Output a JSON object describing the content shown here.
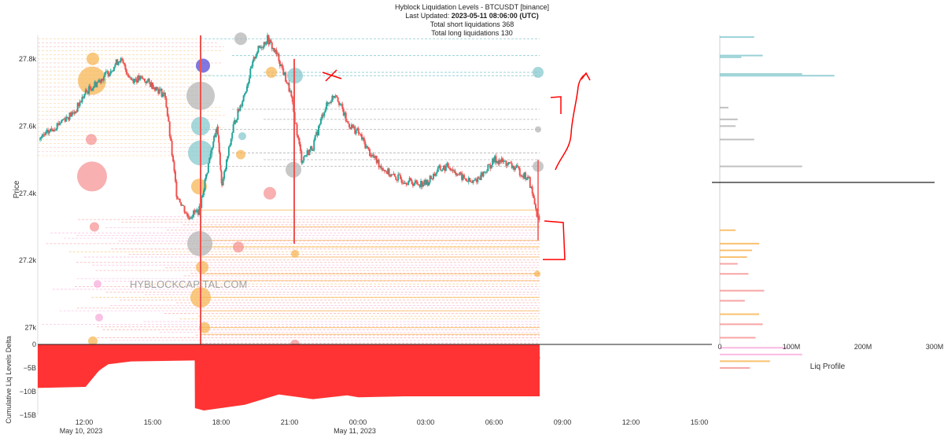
{
  "header": {
    "title": "Hyblock Liquidation Levels - BTCUSDT [binance]",
    "updated_label": "Last Updated:",
    "updated_value": "2023-05-11 08:06:00 (UTC)",
    "short_liq": "Total short liquidations 368",
    "long_liq": "Total long liquidations 130"
  },
  "watermark": "HYBLOCKCAPITAL.COM",
  "colors": {
    "candle_up": "#26a69a",
    "candle_down": "#ef5350",
    "delta_fill": "#ff3333",
    "short_teal": "#7fc6cc",
    "short_gray": "#b0b0b0",
    "long_orange": "#f7b24b",
    "long_salmon": "#f58f8f",
    "long_pink": "#f7a8d8",
    "annotation_red": "#ff0000"
  },
  "chart_data": [
    {
      "type": "scatter",
      "title": "Hyblock Liquidation Levels - BTCUSDT [binance]",
      "ylabel": "Price",
      "x_ticks": [
        "12:00",
        "15:00",
        "18:00",
        "21:00",
        "00:00",
        "03:00",
        "06:00",
        "09:00",
        "12:00",
        "15:00"
      ],
      "x_date_labels": [
        "May 10, 2023",
        "May 11, 2023"
      ],
      "y_ticks": [
        "27.8k",
        "27.6k",
        "27.4k",
        "27.2k",
        "27k"
      ],
      "ylim": [
        26950,
        27870
      ],
      "price_series": {
        "x_hours": [
          0,
          0.5,
          1,
          1.5,
          2,
          2.5,
          3,
          3.5,
          4,
          4.5,
          5,
          5.5,
          6,
          6.5,
          7,
          7.5,
          7.8,
          8,
          8.5,
          9,
          9.5,
          10,
          10.5,
          11,
          11.5,
          12,
          12.5,
          13,
          13.5,
          14,
          14.5,
          15,
          15.5,
          16,
          16.5,
          17,
          17.5,
          18,
          18.5,
          19,
          19.5,
          20,
          20.5,
          21,
          21.5,
          22
        ],
        "close": [
          27560,
          27590,
          27620,
          27640,
          27700,
          27730,
          27760,
          27800,
          27740,
          27740,
          27720,
          27690,
          27400,
          27330,
          27350,
          27520,
          27600,
          27420,
          27600,
          27700,
          27820,
          27860,
          27800,
          27700,
          27500,
          27540,
          27650,
          27700,
          27610,
          27580,
          27520,
          27480,
          27450,
          27440,
          27430,
          27430,
          27470,
          27480,
          27450,
          27430,
          27460,
          27500,
          27490,
          27470,
          27440,
          27300
        ]
      },
      "short_liq_levels": [
        27860,
        27810,
        27760,
        27750,
        27650,
        27620,
        27590,
        27520,
        27500,
        27480
      ],
      "long_liq_levels": [
        27350,
        27300,
        27260,
        27240,
        27210,
        27160,
        27140,
        27090,
        27050,
        27000,
        26980,
        26900
      ]
    },
    {
      "type": "area",
      "ylabel": "Cumulative Liq Levels Delta",
      "y_ticks": [
        "0",
        "−5B",
        "−10B",
        "−15B"
      ],
      "ylim": [
        -15,
        0
      ],
      "x_hours": [
        0,
        2,
        2.6,
        3,
        4,
        6.8,
        6.81,
        7.2,
        9,
        10.5,
        12,
        13.5,
        14,
        16,
        18,
        20,
        22
      ],
      "values_billion": [
        -9.2,
        -9.0,
        -5.5,
        -4.2,
        -3.6,
        -3.4,
        -13.5,
        -14.0,
        -12.8,
        -10.6,
        -11.6,
        -10.8,
        -11.2,
        -11.0,
        -11.0,
        -11.0,
        -11.0
      ]
    },
    {
      "type": "bar",
      "xlabel": "Liq Profile",
      "x_ticks": [
        "0",
        "100M",
        "200M",
        "300M"
      ],
      "xlim": [
        0,
        300
      ],
      "orientation": "horizontal",
      "short_profile": [
        {
          "price": 27865,
          "value": 48,
          "color": "teal"
        },
        {
          "price": 27810,
          "value": 60,
          "color": "teal"
        },
        {
          "price": 27805,
          "value": 30,
          "color": "teal"
        },
        {
          "price": 27755,
          "value": 115,
          "color": "teal"
        },
        {
          "price": 27750,
          "value": 160,
          "color": "teal"
        },
        {
          "price": 27655,
          "value": 12,
          "color": "gray"
        },
        {
          "price": 27620,
          "value": 25,
          "color": "gray"
        },
        {
          "price": 27600,
          "value": 22,
          "color": "gray"
        },
        {
          "price": 27560,
          "value": 48,
          "color": "gray"
        },
        {
          "price": 27480,
          "value": 115,
          "color": "gray"
        }
      ],
      "long_profile": [
        {
          "price": 27290,
          "value": 22,
          "color": "orange"
        },
        {
          "price": 27250,
          "value": 55,
          "color": "orange"
        },
        {
          "price": 27230,
          "value": 45,
          "color": "orange"
        },
        {
          "price": 27210,
          "value": 38,
          "color": "orange"
        },
        {
          "price": 27190,
          "value": 25,
          "color": "salmon"
        },
        {
          "price": 27160,
          "value": 40,
          "color": "salmon"
        },
        {
          "price": 27110,
          "value": 62,
          "color": "salmon"
        },
        {
          "price": 27080,
          "value": 35,
          "color": "salmon"
        },
        {
          "price": 27040,
          "value": 55,
          "color": "orange"
        },
        {
          "price": 27010,
          "value": 60,
          "color": "salmon"
        },
        {
          "price": 26970,
          "value": 50,
          "color": "salmon"
        },
        {
          "price": 26940,
          "value": 95,
          "color": "pink"
        },
        {
          "price": 26920,
          "value": 115,
          "color": "pink"
        },
        {
          "price": 26900,
          "value": 70,
          "color": "orange"
        },
        {
          "price": 26880,
          "value": 42,
          "color": "salmon"
        }
      ]
    }
  ]
}
